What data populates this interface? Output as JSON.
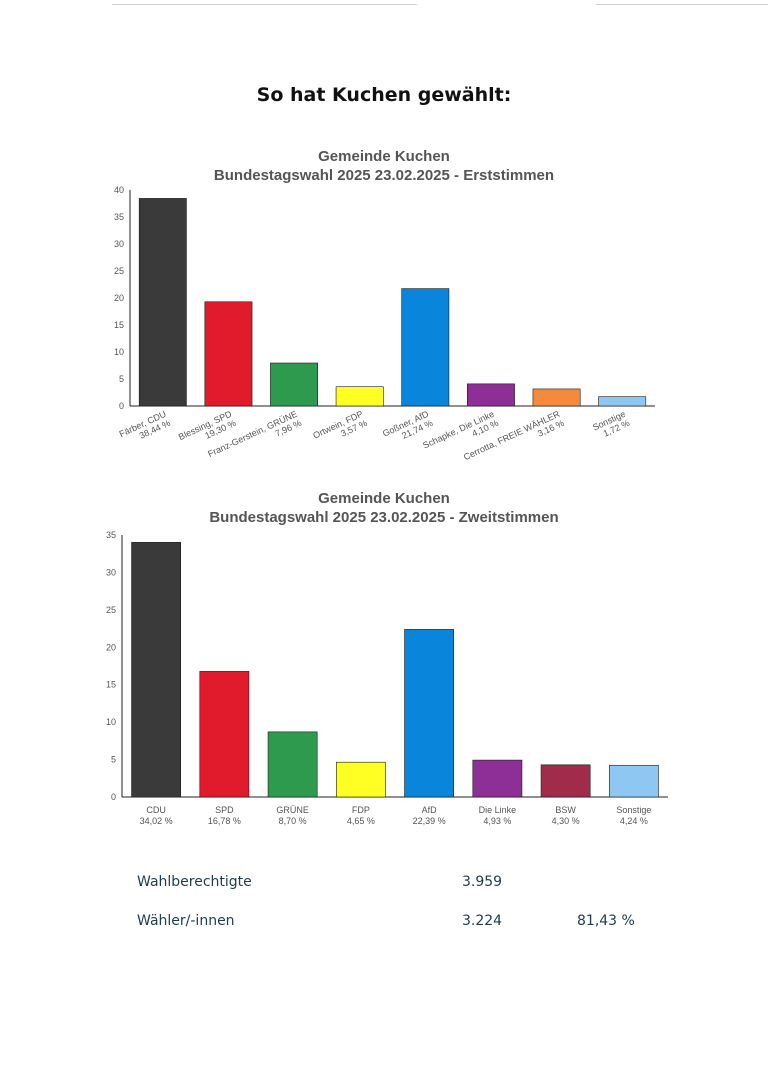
{
  "page": {
    "title": "So hat Kuchen gewählt:"
  },
  "charts": {
    "erst": {
      "title_line1": "Gemeinde Kuchen",
      "title_line2": "Bundestagswahl 2025 23.02.2025  - Erststimmen"
    },
    "zweit": {
      "title_line1": "Gemeinde Kuchen",
      "title_line2": "Bundestagswahl 2025 23.02.2025  - Zweitstimmen"
    }
  },
  "chart_data": [
    {
      "type": "bar",
      "title": "Gemeinde Kuchen Bundestagswahl 2025 23.02.2025  - Erststimmen",
      "categories": [
        "Färber, CDU",
        "Blessing, SPD",
        "Franz-Gerstein, GRÜNE",
        "Ortwein, FDP",
        "Goßner, AfD",
        "Schapke, Die Linke",
        "Cerrotta, FREIE WÄHLER",
        "Sonstige"
      ],
      "value_labels": [
        "38,44 %",
        "19,30 %",
        "7,96 %",
        "3,57 %",
        "21,74 %",
        "4,10 %",
        "3,16 %",
        "1,72 %"
      ],
      "values": [
        38.44,
        19.3,
        7.96,
        3.57,
        21.74,
        4.1,
        3.16,
        1.72
      ],
      "colors": [
        "#3a3a3a",
        "#e21b2c",
        "#2e9a4e",
        "#ffff24",
        "#0a85dc",
        "#8e2f97",
        "#f58a3c",
        "#8ec7f2"
      ],
      "yticks": [
        0,
        5,
        10,
        15,
        20,
        25,
        30,
        35,
        40
      ],
      "ylim": [
        0,
        40
      ],
      "grid": false,
      "xlabel": "",
      "ylabel": ""
    },
    {
      "type": "bar",
      "title": "Gemeinde Kuchen Bundestagswahl 2025 23.02.2025  - Zweitstimmen",
      "categories": [
        "CDU",
        "SPD",
        "GRÜNE",
        "FDP",
        "AfD",
        "Die Linke",
        "BSW",
        "Sonstige"
      ],
      "value_labels": [
        "34,02 %",
        "16,78 %",
        "8,70 %",
        "4,65 %",
        "22,39 %",
        "4,93 %",
        "4,30 %",
        "4,24 %"
      ],
      "values": [
        34.02,
        16.78,
        8.7,
        4.65,
        22.39,
        4.93,
        4.3,
        4.24
      ],
      "colors": [
        "#3a3a3a",
        "#e21b2c",
        "#2e9a4e",
        "#ffff24",
        "#0a85dc",
        "#8e2f97",
        "#a02b4a",
        "#8ec7f2"
      ],
      "yticks": [
        0,
        5,
        10,
        15,
        20,
        25,
        30,
        35
      ],
      "ylim": [
        0,
        35
      ],
      "grid": false,
      "xlabel": "",
      "ylabel": ""
    }
  ],
  "stats": {
    "eligible": {
      "label": "Wahlberechtigte",
      "value": "3.959"
    },
    "voters": {
      "label": "Wähler/-innen",
      "value": "3.224",
      "percent": "81,43 %"
    }
  }
}
